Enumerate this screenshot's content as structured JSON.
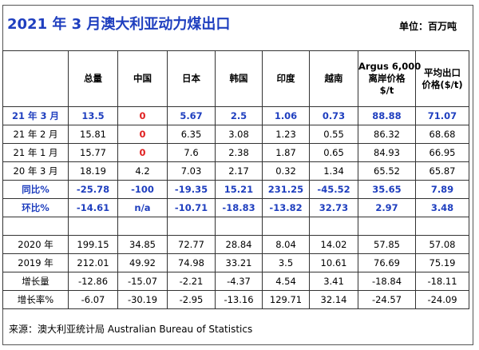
{
  "title": "2021 年 3 月澳大利亚动力煤出口",
  "unit": "单位：百万吨",
  "columns": [
    "",
    "总量",
    "中国",
    "日本",
    "韩国",
    "印度",
    "越南",
    [
      "Argus 6,000",
      "离岸价格",
      "$/t"
    ],
    [
      "平均出口",
      "价格($/t)"
    ]
  ],
  "rows": [
    {
      "label": "21 年 3 月",
      "values": [
        "13.5",
        "0",
        "5.67",
        "2.5",
        "1.06",
        "0.73",
        "88.88",
        "71.07"
      ],
      "style": "highlight"
    },
    {
      "label": "21 年 2 月",
      "values": [
        "15.81",
        "0",
        "6.35",
        "3.08",
        "1.23",
        "0.55",
        "86.32",
        "68.68"
      ],
      "style": "normal"
    },
    {
      "label": "21 年 1 月",
      "values": [
        "15.77",
        "0",
        "7.6",
        "2.38",
        "1.87",
        "0.65",
        "84.93",
        "66.95"
      ],
      "style": "normal"
    },
    {
      "label": "20 年 3 月",
      "values": [
        "18.19",
        "4.2",
        "7.03",
        "2.17",
        "0.32",
        "1.34",
        "65.52",
        "65.87"
      ],
      "style": "normal"
    },
    {
      "label": "同比%",
      "values": [
        "-25.78",
        "-100",
        "-19.35",
        "15.21",
        "231.25",
        "-45.52",
        "35.65",
        "7.89"
      ],
      "style": "blue"
    },
    {
      "label": "环比%",
      "values": [
        "-14.61",
        "n/a",
        "-10.71",
        "-18.83",
        "-13.82",
        "32.73",
        "2.97",
        "3.48"
      ],
      "style": "blue"
    },
    {
      "label": "",
      "values": [
        "",
        "",
        "",
        "",
        "",
        "",
        "",
        ""
      ],
      "style": "spacer"
    },
    {
      "label": "2020 年",
      "values": [
        "199.15",
        "34.85",
        "72.77",
        "28.84",
        "8.04",
        "14.02",
        "57.85",
        "57.08"
      ],
      "style": "normal"
    },
    {
      "label": "2019 年",
      "values": [
        "212.01",
        "49.92",
        "74.98",
        "33.21",
        "3.5",
        "10.61",
        "76.69",
        "75.19"
      ],
      "style": "normal"
    },
    {
      "label": "增长量",
      "values": [
        "-12.86",
        "-15.07",
        "-2.21",
        "-4.37",
        "4.54",
        "3.41",
        "-18.84",
        "-18.11"
      ],
      "style": "normal"
    },
    {
      "label": "增长率%",
      "values": [
        "-6.07",
        "-30.19",
        "-2.95",
        "-13.16",
        "129.71",
        "32.14",
        "-24.57",
        "-24.09"
      ],
      "style": "normal"
    }
  ],
  "source": "来源：澳大利亚统计局  Australian Bureau of Statistics",
  "colors": {
    "title": "#1f3fbf",
    "highlight": "#1f3fbf",
    "zero": "#e02020"
  }
}
